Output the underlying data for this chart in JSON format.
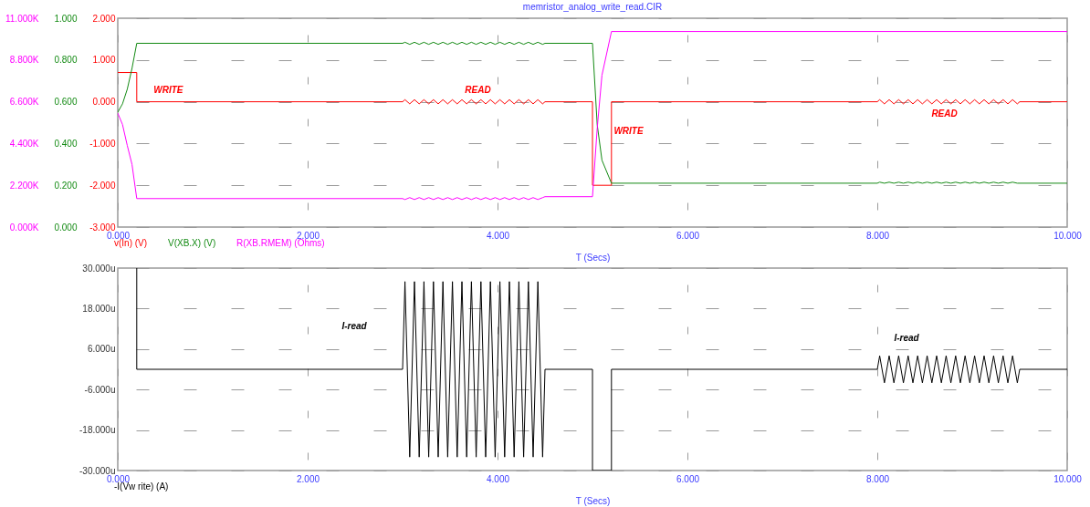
{
  "chart_data": [
    {
      "type": "line",
      "title": "memristor_analog_write_read.CIR",
      "xlabel": "T (Secs)",
      "xlim": [
        0,
        10
      ],
      "xticks": [
        {
          "value": 0,
          "label": "0.000"
        },
        {
          "value": 2,
          "label": "2.000"
        },
        {
          "value": 4,
          "label": "4.000"
        },
        {
          "value": 6,
          "label": "6.000"
        },
        {
          "value": 8,
          "label": "8.000"
        },
        {
          "value": 10,
          "label": "10.000"
        }
      ],
      "ylim": [
        -3,
        2
      ],
      "yticks": [
        {
          "value": -3,
          "label": "-3.000"
        },
        {
          "value": -2,
          "label": "-2.000"
        },
        {
          "value": -1,
          "label": "-1.000"
        },
        {
          "value": 0,
          "label": "0.000"
        },
        {
          "value": 1,
          "label": "1.000"
        },
        {
          "value": 2,
          "label": "2.000"
        }
      ],
      "y2lim": [
        0,
        1
      ],
      "y2ticks": [
        {
          "value": 0,
          "label": "0.000"
        },
        {
          "value": 0.2,
          "label": "0.200"
        },
        {
          "value": 0.4,
          "label": "0.400"
        },
        {
          "value": 0.6,
          "label": "0.600"
        },
        {
          "value": 0.8,
          "label": "0.800"
        },
        {
          "value": 1,
          "label": "1.000"
        }
      ],
      "y3lim": [
        0,
        11
      ],
      "y3ticks": [
        {
          "value": 0,
          "label": "0.000K"
        },
        {
          "value": 2.2,
          "label": "2.200K"
        },
        {
          "value": 4.4,
          "label": "4.400K"
        },
        {
          "value": 6.6,
          "label": "6.600K"
        },
        {
          "value": 8.8,
          "label": "8.800K"
        },
        {
          "value": 11,
          "label": "11.000K"
        }
      ],
      "grid": true,
      "legend": "bottom left",
      "annotations": [
        "WRITE",
        "READ",
        "WRITE",
        "READ"
      ],
      "series": [
        {
          "name": "v(In) (V)",
          "color": "#ff0000",
          "axis": "y",
          "x": [
            0,
            0.2,
            0.2,
            3,
            3.025,
            3.075,
            3.125,
            3.175,
            3.225,
            3.275,
            3.325,
            3.375,
            3.425,
            3.475,
            3.525,
            3.575,
            3.625,
            3.675,
            3.725,
            3.775,
            3.825,
            3.875,
            3.925,
            3.975,
            4.025,
            4.075,
            4.125,
            4.175,
            4.225,
            4.275,
            4.325,
            4.375,
            4.425,
            4.475,
            4.5,
            5,
            5,
            5.2,
            5.2,
            8,
            8.025,
            8.075,
            8.125,
            8.175,
            8.225,
            8.275,
            8.325,
            8.375,
            8.425,
            8.475,
            8.525,
            8.575,
            8.625,
            8.675,
            8.725,
            8.775,
            8.825,
            8.875,
            8.925,
            8.975,
            9.025,
            9.075,
            9.125,
            9.175,
            9.225,
            9.275,
            9.325,
            9.375,
            9.425,
            9.475,
            9.5,
            10
          ],
          "values": [
            0.7,
            0.7,
            0,
            0,
            0.05,
            -0.05,
            0.05,
            -0.05,
            0.05,
            -0.05,
            0.05,
            -0.05,
            0.05,
            -0.05,
            0.05,
            -0.05,
            0.05,
            -0.05,
            0.05,
            -0.05,
            0.05,
            -0.05,
            0.05,
            -0.05,
            0.05,
            -0.05,
            0.05,
            -0.05,
            0.05,
            -0.05,
            0.05,
            -0.05,
            0.05,
            -0.05,
            0,
            0,
            -2,
            -2,
            0,
            0,
            0.05,
            -0.05,
            0.05,
            -0.05,
            0.05,
            -0.05,
            0.05,
            -0.05,
            0.05,
            -0.05,
            0.05,
            -0.05,
            0.05,
            -0.05,
            0.05,
            -0.05,
            0.05,
            -0.05,
            0.05,
            -0.05,
            0.05,
            -0.05,
            0.05,
            -0.05,
            0.05,
            -0.05,
            0.05,
            -0.05,
            0.05,
            -0.05,
            0,
            0
          ]
        },
        {
          "name": "V(XB.X) (V)",
          "color": "#138a13",
          "axis": "y2",
          "x": [
            0,
            0.05,
            0.1,
            0.15,
            0.2,
            3,
            3.025,
            3.075,
            3.125,
            3.175,
            3.225,
            3.275,
            3.325,
            3.375,
            3.425,
            3.475,
            3.525,
            3.575,
            3.625,
            3.675,
            3.725,
            3.775,
            3.825,
            3.875,
            3.925,
            3.975,
            4.025,
            4.075,
            4.125,
            4.175,
            4.225,
            4.275,
            4.325,
            4.375,
            4.425,
            4.475,
            4.5,
            5,
            5.05,
            5.1,
            5.2,
            8,
            8.025,
            8.075,
            8.125,
            8.175,
            8.225,
            8.275,
            8.325,
            8.375,
            8.425,
            8.475,
            8.525,
            8.575,
            8.625,
            8.675,
            8.725,
            8.775,
            8.825,
            8.875,
            8.925,
            8.975,
            9.025,
            9.075,
            9.125,
            9.175,
            9.225,
            9.275,
            9.325,
            9.375,
            9.425,
            9.475,
            9.5,
            10
          ],
          "values": [
            0.55,
            0.59,
            0.66,
            0.76,
            0.88,
            0.88,
            0.885,
            0.875,
            0.885,
            0.875,
            0.885,
            0.875,
            0.885,
            0.875,
            0.885,
            0.875,
            0.885,
            0.875,
            0.885,
            0.875,
            0.885,
            0.875,
            0.885,
            0.875,
            0.885,
            0.875,
            0.885,
            0.875,
            0.885,
            0.875,
            0.885,
            0.875,
            0.885,
            0.875,
            0.885,
            0.875,
            0.88,
            0.88,
            0.49,
            0.32,
            0.21,
            0.21,
            0.215,
            0.21,
            0.215,
            0.21,
            0.215,
            0.21,
            0.215,
            0.21,
            0.215,
            0.21,
            0.215,
            0.21,
            0.215,
            0.21,
            0.215,
            0.21,
            0.215,
            0.21,
            0.215,
            0.21,
            0.215,
            0.21,
            0.215,
            0.21,
            0.215,
            0.21,
            0.215,
            0.21,
            0.215,
            0.21,
            0.21,
            0.21
          ]
        },
        {
          "name": "R(XB.RMEM) (Ohms)",
          "color": "#ff00ff",
          "axis": "y3",
          "x": [
            0,
            0.05,
            0.1,
            0.15,
            0.2,
            3,
            3.025,
            3.075,
            3.125,
            3.175,
            3.225,
            3.275,
            3.325,
            3.375,
            3.425,
            3.475,
            3.525,
            3.575,
            3.625,
            3.675,
            3.725,
            3.775,
            3.825,
            3.875,
            3.925,
            3.975,
            4.025,
            4.075,
            4.125,
            4.175,
            4.225,
            4.275,
            4.325,
            4.375,
            4.425,
            4.475,
            4.5,
            5,
            5.05,
            5.1,
            5.2,
            10
          ],
          "values": [
            6.0,
            5.4,
            4.3,
            3.3,
            1.5,
            1.5,
            1.45,
            1.55,
            1.45,
            1.55,
            1.45,
            1.55,
            1.45,
            1.55,
            1.45,
            1.55,
            1.45,
            1.55,
            1.45,
            1.55,
            1.45,
            1.55,
            1.45,
            1.55,
            1.45,
            1.55,
            1.45,
            1.55,
            1.45,
            1.55,
            1.45,
            1.55,
            1.45,
            1.55,
            1.45,
            1.55,
            1.6,
            1.6,
            5.2,
            8.0,
            10.3,
            10.3
          ]
        }
      ]
    },
    {
      "type": "line",
      "xlabel": "T (Secs)",
      "xlim": [
        0,
        10
      ],
      "xticks": [
        {
          "value": 0,
          "label": "0.000"
        },
        {
          "value": 2,
          "label": "2.000"
        },
        {
          "value": 4,
          "label": "4.000"
        },
        {
          "value": 6,
          "label": "6.000"
        },
        {
          "value": 8,
          "label": "8.000"
        },
        {
          "value": 10,
          "label": "10.000"
        }
      ],
      "ylim": [
        -30,
        30
      ],
      "yticks": [
        {
          "value": -30,
          "label": "-30.000u"
        },
        {
          "value": -18,
          "label": "-18.000u"
        },
        {
          "value": -6,
          "label": "-6.000u"
        },
        {
          "value": 6,
          "label": "6.000u"
        },
        {
          "value": 18,
          "label": "18.000u"
        },
        {
          "value": 30,
          "label": "30.000u"
        }
      ],
      "grid": true,
      "legend": "bottom left",
      "annotations": [
        "I-read",
        "I-read"
      ],
      "series": [
        {
          "name": "-I(Vw rite) (A)",
          "color": "#000000",
          "x": [
            0.2,
            0.2,
            3,
            3.025,
            3.075,
            3.125,
            3.175,
            3.225,
            3.275,
            3.325,
            3.375,
            3.425,
            3.475,
            3.525,
            3.575,
            3.625,
            3.675,
            3.725,
            3.775,
            3.825,
            3.875,
            3.925,
            3.975,
            4.025,
            4.075,
            4.125,
            4.175,
            4.225,
            4.275,
            4.325,
            4.375,
            4.425,
            4.475,
            4.5,
            5,
            5,
            5.2,
            5.2,
            8,
            8.025,
            8.075,
            8.125,
            8.175,
            8.225,
            8.275,
            8.325,
            8.375,
            8.425,
            8.475,
            8.525,
            8.575,
            8.625,
            8.675,
            8.725,
            8.775,
            8.825,
            8.875,
            8.925,
            8.975,
            9.025,
            9.075,
            9.125,
            9.175,
            9.225,
            9.275,
            9.325,
            9.375,
            9.425,
            9.475,
            9.5,
            10
          ],
          "values": [
            30,
            0,
            0,
            26,
            -26,
            26,
            -26,
            26,
            -26,
            26,
            -26,
            26,
            -26,
            26,
            -26,
            26,
            -26,
            26,
            -26,
            26,
            -26,
            26,
            -26,
            26,
            -26,
            26,
            -26,
            26,
            -26,
            26,
            -26,
            26,
            -26,
            0,
            0,
            -30,
            -30,
            0,
            0,
            4,
            -4,
            4,
            -4,
            4,
            -4,
            4,
            -4,
            4,
            -4,
            4,
            -4,
            4,
            -4,
            4,
            -4,
            4,
            -4,
            4,
            -4,
            4,
            -4,
            4,
            -4,
            4,
            -4,
            4,
            -4,
            4,
            -4,
            0,
            0
          ]
        }
      ]
    }
  ]
}
